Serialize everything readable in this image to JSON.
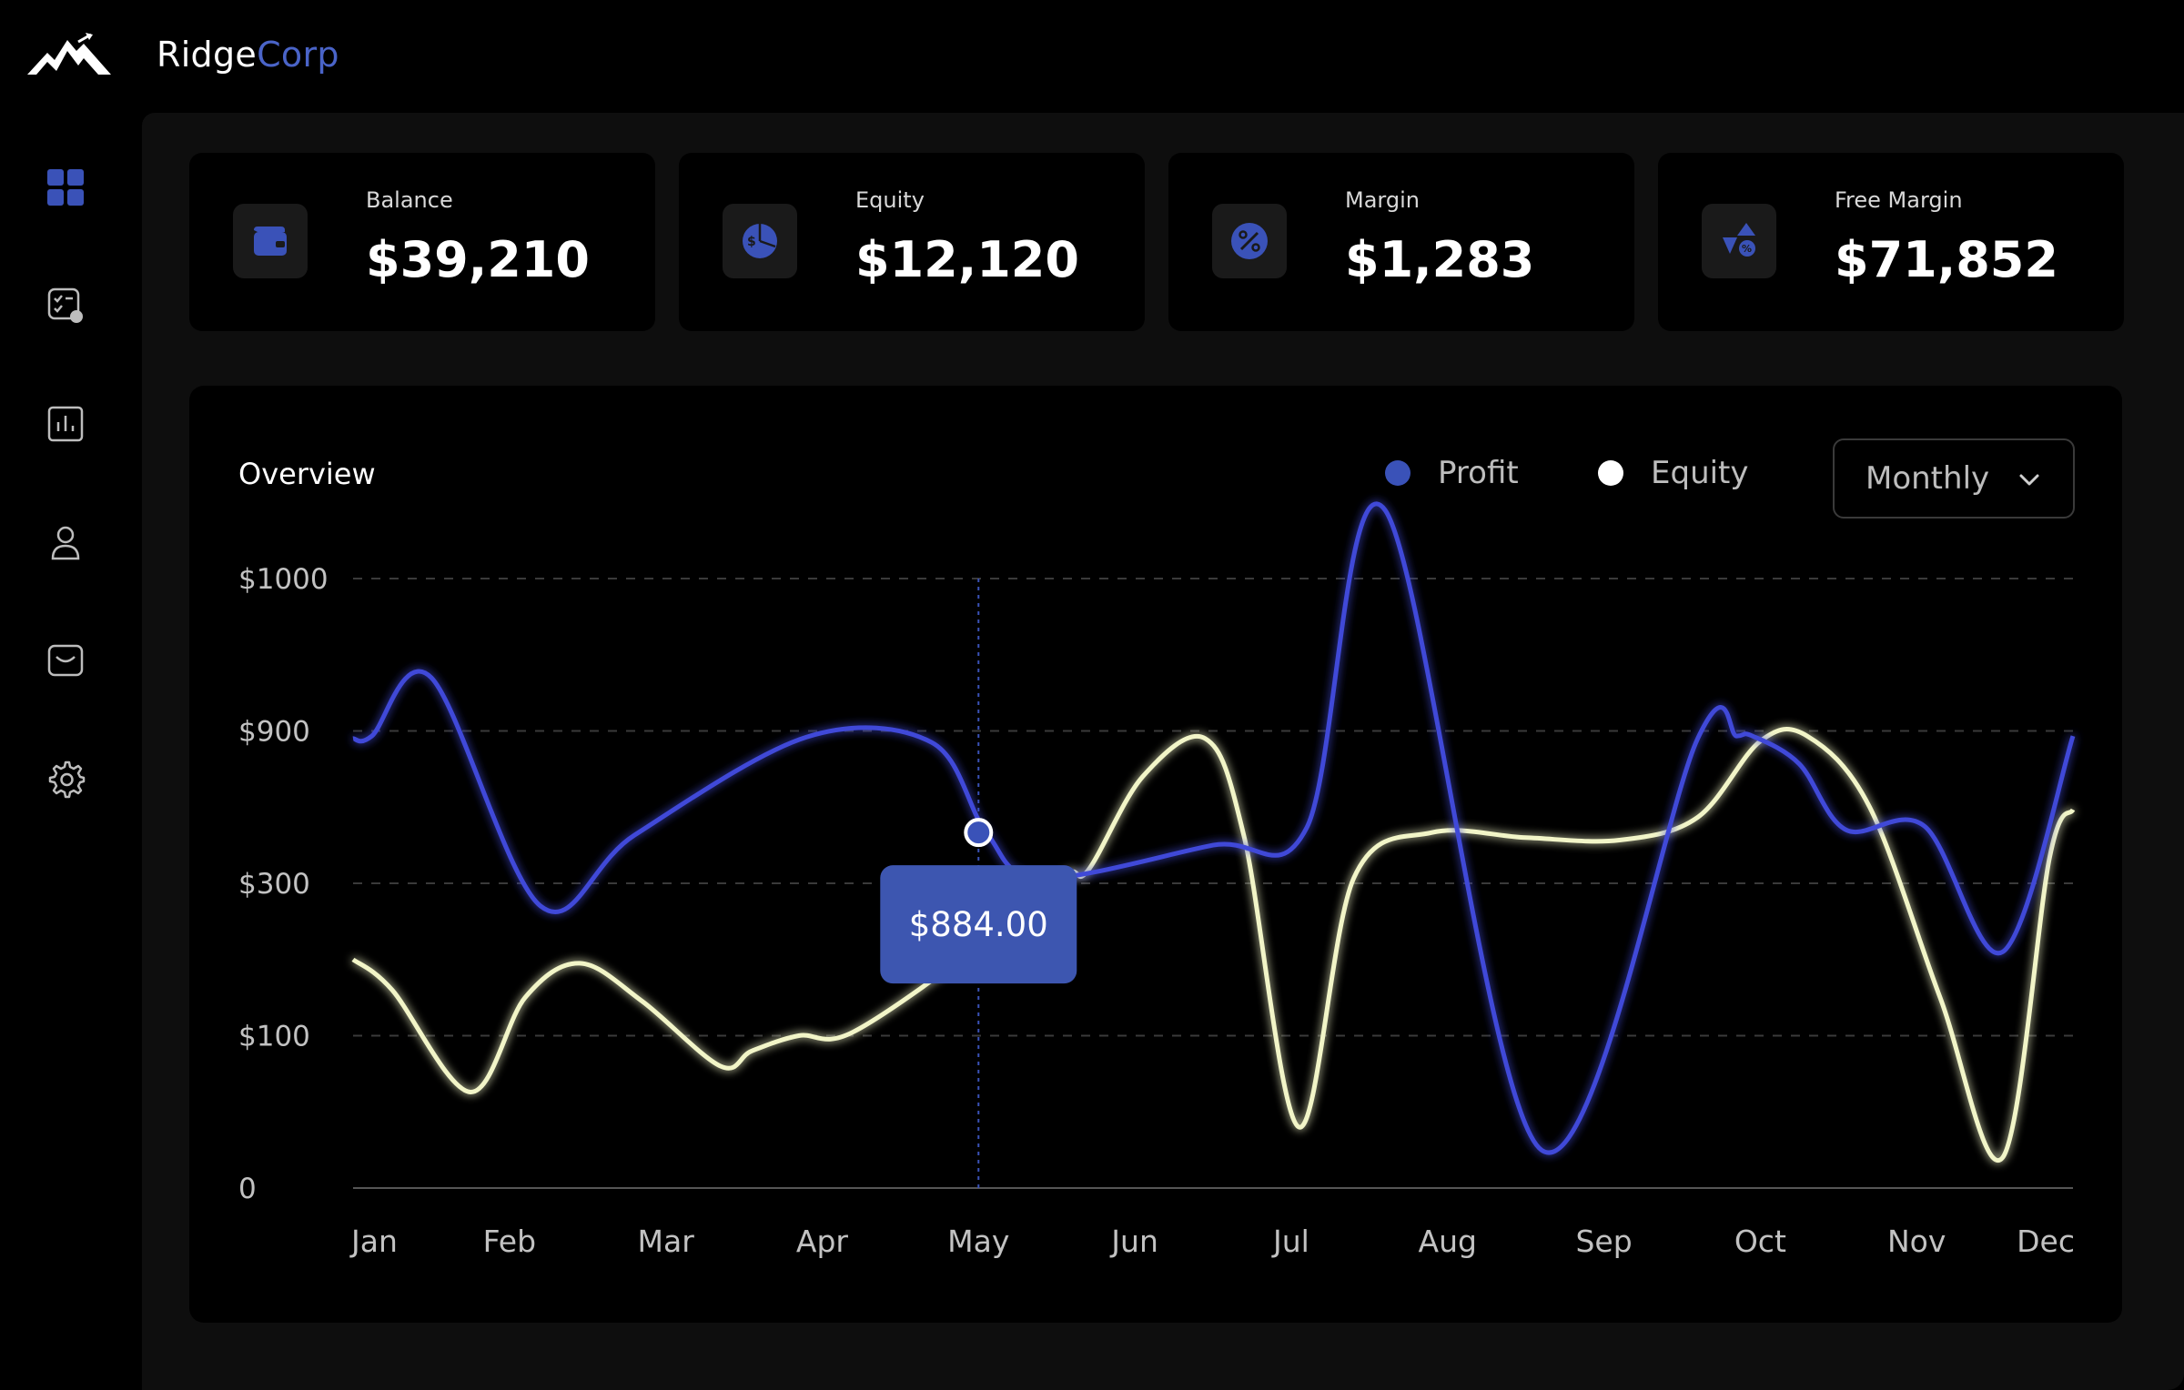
{
  "brand": {
    "name_part1": "Ridge",
    "name_part2": "Corp"
  },
  "sidebar": {
    "items": [
      {
        "icon": "dashboard-grid-icon",
        "active": true
      },
      {
        "icon": "tasks-checklist-icon",
        "active": false
      },
      {
        "icon": "bar-chart-icon",
        "active": false
      },
      {
        "icon": "user-icon",
        "active": false
      },
      {
        "icon": "inbox-icon",
        "active": false
      },
      {
        "icon": "settings-gear-icon",
        "active": false
      }
    ]
  },
  "cards": [
    {
      "label": "Balance",
      "value": "$39,210",
      "icon": "wallet-icon"
    },
    {
      "label": "Equity",
      "value": "$12,120",
      "icon": "pie-chart-dollar-icon"
    },
    {
      "label": "Margin",
      "value": "$1,283",
      "icon": "percent-badge-icon"
    },
    {
      "label": "Free Margin",
      "value": "$71,852",
      "icon": "discount-shapes-icon"
    }
  ],
  "overview": {
    "title": "Overview",
    "legend": [
      {
        "label": "Profit",
        "color": "#3a52b8"
      },
      {
        "label": "Equity",
        "color": "#ffffff"
      }
    ],
    "period_select": {
      "value": "Monthly"
    }
  },
  "colors": {
    "accent": "#3a52b8",
    "profit_line": "#4048d8",
    "equity_line": "#f2f5c8",
    "tooltip_bg": "#3d56b0"
  },
  "chart_data": {
    "type": "line",
    "categories": [
      "Jan",
      "Feb",
      "Mar",
      "Apr",
      "May",
      "Jun",
      "Jul",
      "Aug",
      "Sep",
      "Oct",
      "Nov",
      "Dec"
    ],
    "y_tick_labels": [
      "0",
      "$100",
      "$300",
      "$900",
      "$1000"
    ],
    "y_scale": "ordinal-bands",
    "grid": "horizontal dashed",
    "series": [
      {
        "name": "Profit",
        "points": [
          [
            0,
            870
          ],
          [
            0.12,
            880
          ],
          [
            0.5,
            935
          ],
          [
            1.2,
            270
          ],
          [
            1.8,
            490
          ],
          [
            2.9,
            876
          ],
          [
            3.7,
            855
          ],
          [
            4.05,
            500
          ],
          [
            4.4,
            320
          ],
          [
            5.5,
            450
          ],
          [
            6.1,
            520
          ],
          [
            6.6,
            1045
          ],
          [
            7.6,
            25
          ],
          [
            8.6,
            870
          ],
          [
            8.85,
            880
          ],
          [
            8.95,
            880
          ],
          [
            9.25,
            770
          ],
          [
            9.55,
            510
          ],
          [
            10.05,
            525
          ],
          [
            10.55,
            210
          ],
          [
            11.0,
            880
          ]
        ]
      },
      {
        "name": "Equity",
        "points": [
          [
            0,
            200
          ],
          [
            0.25,
            160
          ],
          [
            0.75,
            63
          ],
          [
            1.1,
            150
          ],
          [
            1.45,
            195
          ],
          [
            1.85,
            145
          ],
          [
            2.35,
            80
          ],
          [
            2.55,
            90
          ],
          [
            2.85,
            100
          ],
          [
            3.2,
            105
          ],
          [
            4.05,
            225
          ],
          [
            4.55,
            333
          ],
          [
            4.7,
            350
          ],
          [
            5.05,
            720
          ],
          [
            5.45,
            870
          ],
          [
            5.7,
            480
          ],
          [
            6.05,
            40
          ],
          [
            6.4,
            320
          ],
          [
            6.9,
            500
          ],
          [
            7.5,
            480
          ],
          [
            8.1,
            470
          ],
          [
            8.6,
            560
          ],
          [
            9.0,
            860
          ],
          [
            9.3,
            880
          ],
          [
            9.7,
            600
          ],
          [
            10.15,
            150
          ],
          [
            10.55,
            20
          ],
          [
            10.85,
            400
          ],
          [
            11.0,
            590
          ]
        ]
      }
    ],
    "highlight": {
      "category": "May",
      "series": "Profit",
      "value": "$884.00"
    }
  }
}
